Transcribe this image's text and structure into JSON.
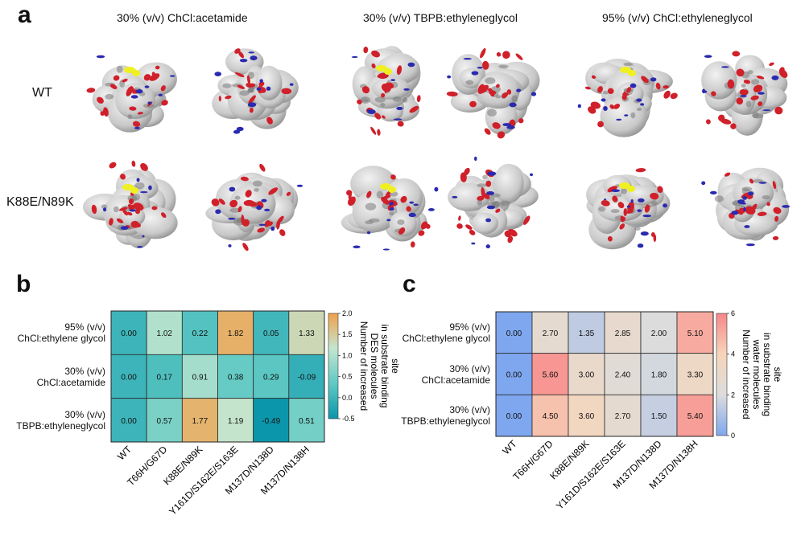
{
  "panel_a": {
    "letter": "a",
    "columns": [
      "30% (v/v) ChCl:acetamide",
      "30% (v/v) TBPB:ethyleneglycol",
      "95% (v/v) ChCl:ethyleneglycol"
    ],
    "rows": [
      "WT",
      "K88E/N89K"
    ],
    "colors": {
      "surface": "#c8c8c8",
      "red": "#d0202a",
      "blue": "#2a2ab0",
      "yellow": "#f0f020"
    }
  },
  "chart_data": [
    {
      "type": "heatmap",
      "panel": "b",
      "row_labels": [
        [
          "95% (v/v)",
          "ChCl:ethylene glycol"
        ],
        [
          "30% (v/v)",
          "ChCl:acetamide"
        ],
        [
          "30% (v/v)",
          "TBPB:ethyleneglycol"
        ]
      ],
      "categories": [
        "WT",
        "T66H/G67D",
        "K88E/N89K",
        "Y161D/S162E/S163E",
        "M137D/N138D",
        "M137D/N138H"
      ],
      "values": [
        [
          0.0,
          1.02,
          0.22,
          1.82,
          0.05,
          1.33
        ],
        [
          0.0,
          0.17,
          0.91,
          0.38,
          0.29,
          -0.09
        ],
        [
          0.0,
          0.57,
          1.77,
          1.19,
          -0.49,
          0.51
        ]
      ],
      "cell_labels": [
        [
          "0.00",
          "1.02",
          "0.22",
          "1.82",
          "0.05",
          "1.33"
        ],
        [
          "0.00",
          "0.17",
          "0.91",
          "0.38",
          "0.29",
          "-0.09"
        ],
        [
          "0.00",
          "0.57",
          "1.77",
          "1.19",
          "-0.49",
          "0.51"
        ]
      ],
      "colorbar": {
        "min": -0.5,
        "max": 2.0,
        "ticks": [
          -0.5,
          0.0,
          0.5,
          1.0,
          1.5,
          2.0
        ],
        "tick_labels": [
          "-0.5",
          "0.0",
          "0.5",
          "1.0",
          "1.5",
          "2.0"
        ],
        "label": [
          "Number of increased",
          "DES molecules",
          "in substrate binding",
          "site"
        ],
        "colors": [
          "#0b95ab",
          "#5fc9c3",
          "#c3e6cf",
          "#f0a14b"
        ]
      }
    },
    {
      "type": "heatmap",
      "panel": "c",
      "row_labels": [
        [
          "95% (v/v)",
          "ChCl:ethylene glycol"
        ],
        [
          "30% (v/v)",
          "ChCl:acetamide"
        ],
        [
          "30% (v/v)",
          "TBPB:ethyleneglycol"
        ]
      ],
      "categories": [
        "WT",
        "T66H/G67D",
        "K88E/N89K",
        "Y161D/S162E/S163E",
        "M137D/N138D",
        "M137D/N138H"
      ],
      "values": [
        [
          0.0,
          2.7,
          1.35,
          2.85,
          2.0,
          5.1
        ],
        [
          0.0,
          5.6,
          3.0,
          2.4,
          1.8,
          3.3
        ],
        [
          0.0,
          4.5,
          3.6,
          2.7,
          1.5,
          5.4
        ]
      ],
      "cell_labels": [
        [
          "0.00",
          "2.70",
          "1.35",
          "2.85",
          "2.00",
          "5.10"
        ],
        [
          "0.00",
          "5.60",
          "3.00",
          "2.40",
          "1.80",
          "3.30"
        ],
        [
          "0.00",
          "4.50",
          "3.60",
          "2.70",
          "1.50",
          "5.40"
        ]
      ],
      "colorbar": {
        "min": 0,
        "max": 6,
        "ticks": [
          0,
          2,
          4,
          6
        ],
        "tick_labels": [
          "0",
          "2",
          "4",
          "6"
        ],
        "label": [
          "Number of increased",
          "water molecules",
          "in substrate binding",
          "site"
        ],
        "colors": [
          "#7fa7ef",
          "#dcdcdc",
          "#f6d5b9",
          "#f7868a"
        ]
      }
    }
  ]
}
